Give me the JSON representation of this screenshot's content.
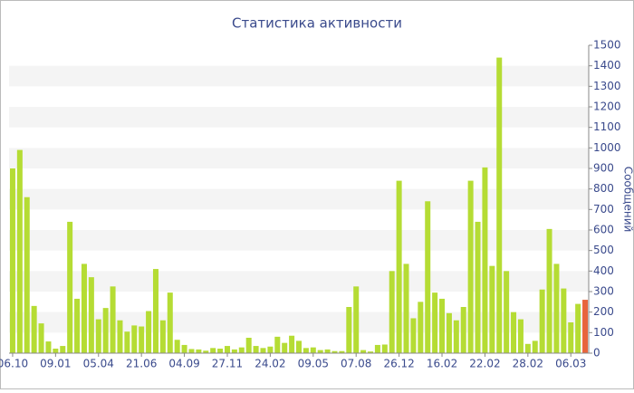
{
  "chart_data": {
    "type": "bar",
    "title": "Статистика активности",
    "y_label": "Сообщений",
    "categories": [
      "06.10",
      null,
      null,
      null,
      null,
      null,
      "09.01",
      null,
      null,
      null,
      null,
      null,
      "05.04",
      null,
      null,
      null,
      null,
      null,
      "21.06",
      null,
      null,
      null,
      null,
      null,
      "04.09",
      null,
      null,
      null,
      null,
      null,
      "27.11",
      null,
      null,
      null,
      null,
      null,
      "24.02",
      null,
      null,
      null,
      null,
      null,
      "09.05",
      null,
      null,
      null,
      null,
      null,
      "07.08",
      null,
      null,
      null,
      null,
      null,
      "26.12",
      null,
      null,
      null,
      null,
      null,
      "16.02",
      null,
      null,
      null,
      null,
      null,
      "22.02",
      null,
      null,
      null,
      null,
      null,
      "28.02",
      null,
      null,
      null,
      null,
      null,
      "06.03",
      null,
      null
    ],
    "values": [
      900,
      990,
      760,
      230,
      145,
      57,
      22,
      35,
      640,
      265,
      435,
      370,
      165,
      220,
      325,
      160,
      105,
      135,
      130,
      205,
      410,
      160,
      295,
      65,
      40,
      20,
      18,
      12,
      25,
      22,
      35,
      18,
      28,
      75,
      35,
      25,
      32,
      80,
      50,
      85,
      60,
      25,
      28,
      15,
      18,
      10,
      10,
      225,
      325,
      15,
      8,
      40,
      42,
      400,
      840,
      435,
      170,
      250,
      740,
      295,
      265,
      195,
      160,
      225,
      840,
      640,
      905,
      425,
      1440,
      400,
      200,
      165,
      45,
      60,
      310,
      605,
      435,
      315,
      150,
      240,
      260
    ],
    "color": "#b5dc34",
    "last_color": "#e8643c",
    "ylim": [
      0,
      1500
    ],
    "yticks": [
      0,
      100,
      200,
      300,
      400,
      500,
      600,
      700,
      800,
      900,
      1000,
      1100,
      1200,
      1300,
      1400,
      1500
    ],
    "grid": true
  }
}
